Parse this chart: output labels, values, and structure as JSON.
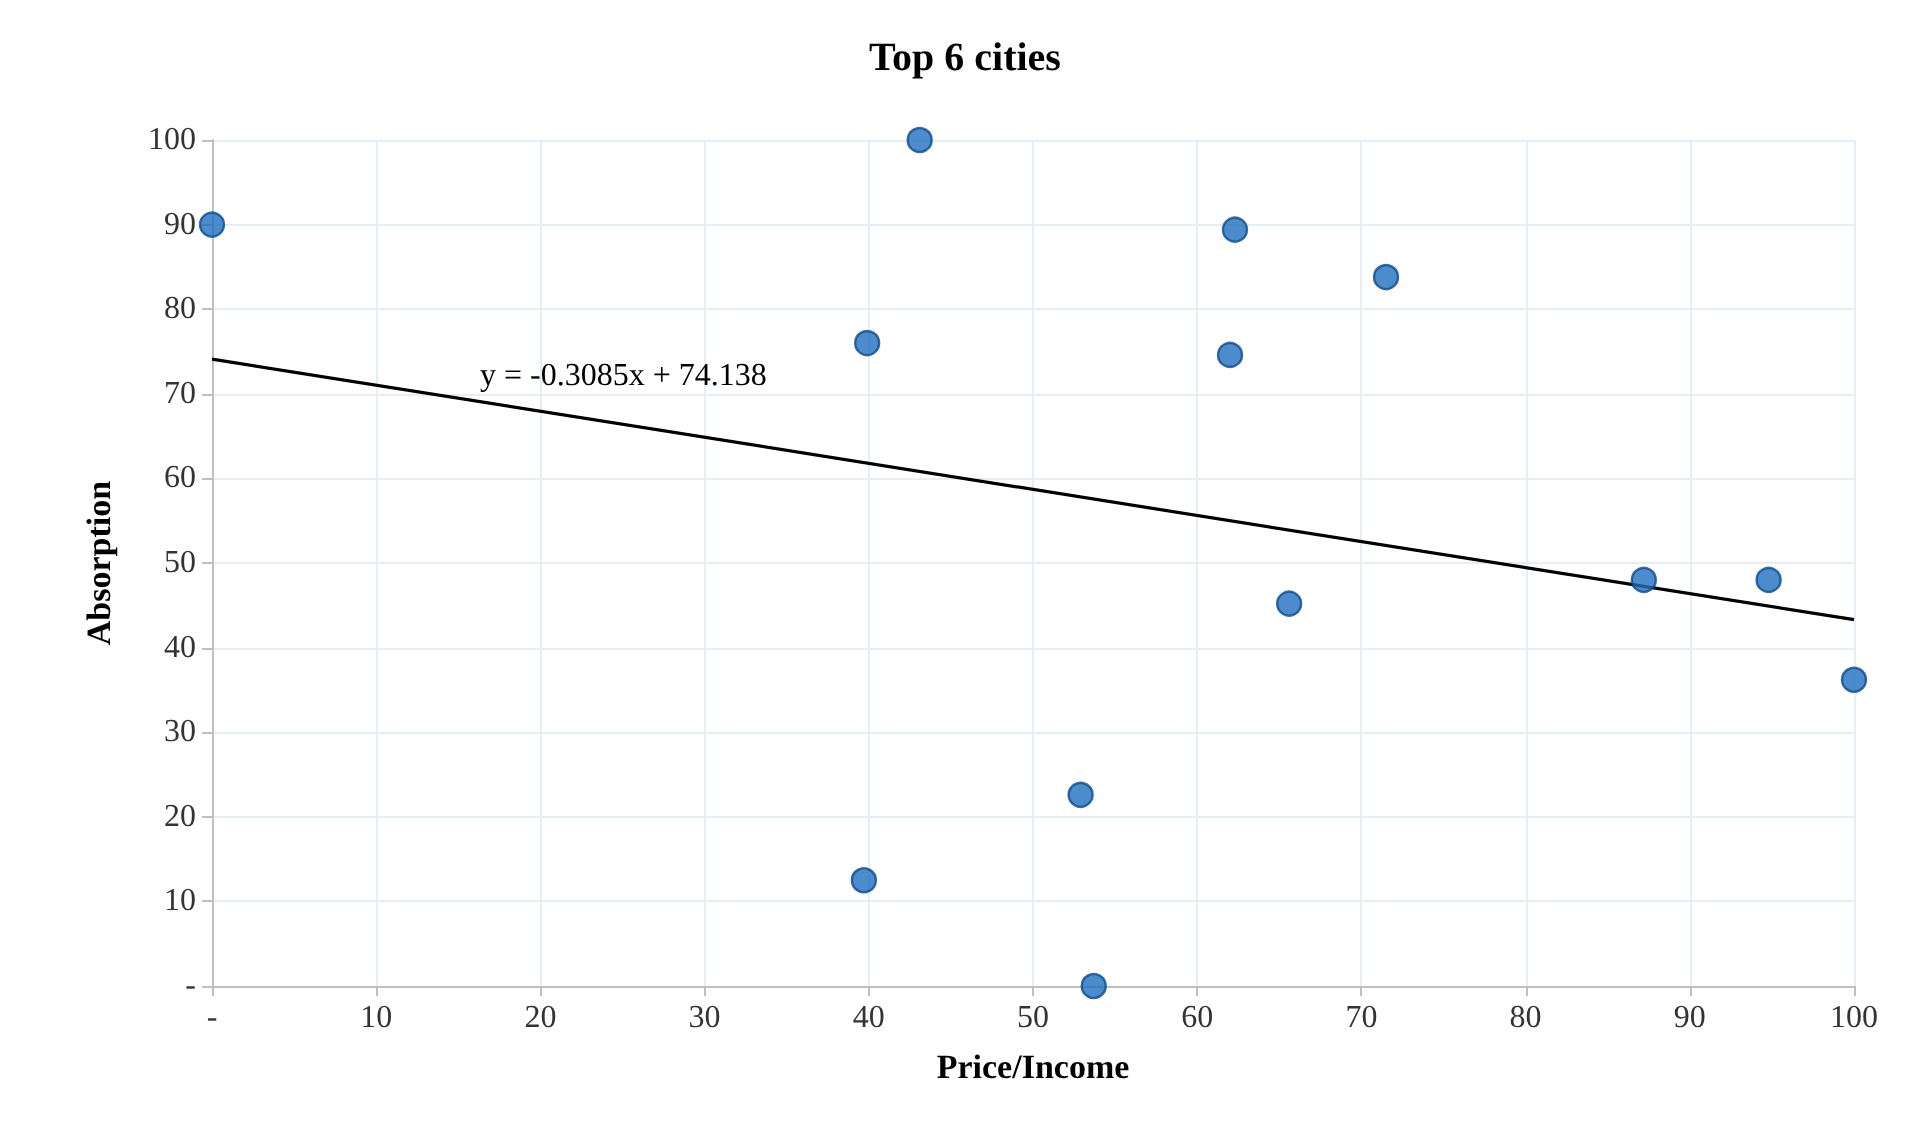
{
  "chart_data": {
    "type": "scatter",
    "title": "Top 6 cities",
    "xlabel": "Price/Income",
    "ylabel": "Absorption",
    "xlim": [
      0,
      100
    ],
    "xticks": [
      {
        "value": 0,
        "label": "-"
      },
      10,
      20,
      30,
      40,
      50,
      60,
      70,
      80,
      90,
      100
    ],
    "ylim": [
      0,
      100
    ],
    "yticks": [
      {
        "value": 0,
        "label": "-"
      },
      10,
      20,
      30,
      40,
      50,
      60,
      70,
      80,
      90,
      100
    ],
    "grid": true,
    "marker": "circle",
    "series": [
      {
        "color": "#1f6fc1",
        "x": [
          0,
          43.1,
          62.3,
          71.5,
          39.9,
          62.0,
          65.6,
          87.2,
          94.8,
          100,
          52.9,
          39.7,
          53.7
        ],
        "values": [
          90,
          100,
          89.4,
          83.8,
          76,
          74.6,
          45.2,
          48,
          48,
          36.2,
          22.6,
          12.5,
          0
        ]
      },
      {
        "type": "line",
        "color": "#000000",
        "line_style": "solid",
        "marker": "none",
        "x": [
          0,
          100
        ],
        "values": [
          74.1,
          43.3
        ]
      }
    ],
    "annotations": [
      "y = -0.3085x + 74.138"
    ]
  }
}
